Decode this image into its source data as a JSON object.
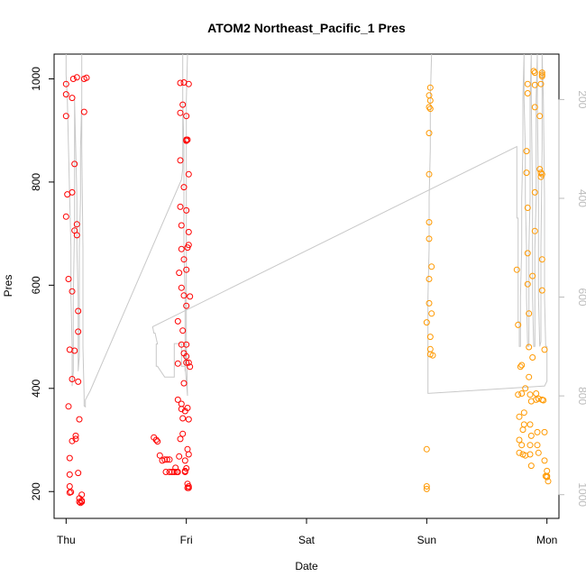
{
  "chart_data": {
    "type": "scatter",
    "title": "ATOM2 Northeast_Pacific_1 Pres",
    "xlabel": "Date",
    "ylabel": "Pres",
    "x_ticks": [
      "Thu",
      "Fri",
      "Sat",
      "Sun",
      "Mon"
    ],
    "xlim": [
      -0.1,
      4.1
    ],
    "ylim": [
      148,
      1048
    ],
    "y_ticks": [
      200,
      400,
      600,
      800,
      1000
    ],
    "y2_ticks": [
      200,
      400,
      600,
      800,
      1000
    ],
    "y2_direction": "reversed",
    "y2lim": [
      108,
      1048
    ],
    "grid": false,
    "legend": "none",
    "colors": {
      "series_a": "#ff0000",
      "series_b": "#ff9900",
      "line": "#c8c8c8",
      "right_axis": "#bbbbbb"
    },
    "series": [
      {
        "marker": "circle-open",
        "color": "#ff0000",
        "points": [
          [
            0.0,
            990
          ],
          [
            0.0,
            970
          ],
          [
            0.0,
            928
          ],
          [
            0.01,
            776
          ],
          [
            0.0,
            733
          ],
          [
            0.02,
            612
          ],
          [
            0.03,
            475
          ],
          [
            0.02,
            365
          ],
          [
            0.03,
            265
          ],
          [
            0.03,
            233
          ],
          [
            0.03,
            210
          ],
          [
            0.03,
            198
          ],
          [
            0.04,
            199
          ],
          [
            0.05,
            963
          ],
          [
            0.05,
            780
          ],
          [
            0.05,
            588
          ],
          [
            0.05,
            418
          ],
          [
            0.05,
            298
          ],
          [
            0.06,
            1000
          ],
          [
            0.07,
            835
          ],
          [
            0.07,
            706
          ],
          [
            0.07,
            473
          ],
          [
            0.08,
            308
          ],
          [
            0.08,
            302
          ],
          [
            0.09,
            1003
          ],
          [
            0.09,
            718
          ],
          [
            0.09,
            697
          ],
          [
            0.1,
            550
          ],
          [
            0.1,
            510
          ],
          [
            0.1,
            413
          ],
          [
            0.11,
            340
          ],
          [
            0.1,
            236
          ],
          [
            0.11,
            187
          ],
          [
            0.11,
            180
          ],
          [
            0.12,
            178
          ],
          [
            0.13,
            180
          ],
          [
            0.13,
            194
          ],
          [
            0.13,
            182
          ],
          [
            0.15,
            1000
          ],
          [
            0.17,
            1002
          ],
          [
            0.15,
            936
          ],
          [
            0.73,
            305
          ],
          [
            0.75,
            300
          ],
          [
            0.76,
            297
          ],
          [
            0.78,
            270
          ],
          [
            0.8,
            260
          ],
          [
            0.82,
            262
          ],
          [
            0.84,
            262
          ],
          [
            0.86,
            262
          ],
          [
            0.83,
            238
          ],
          [
            0.86,
            238
          ],
          [
            0.88,
            238
          ],
          [
            0.9,
            238
          ],
          [
            0.91,
            246
          ],
          [
            0.92,
            238
          ],
          [
            0.93,
            238
          ],
          [
            0.94,
            268
          ],
          [
            0.95,
            302
          ],
          [
            0.93,
            378
          ],
          [
            0.93,
            448
          ],
          [
            0.93,
            530
          ],
          [
            0.94,
            624
          ],
          [
            0.95,
            934
          ],
          [
            0.95,
            842
          ],
          [
            0.95,
            992
          ],
          [
            0.95,
            752
          ],
          [
            0.96,
            716
          ],
          [
            0.96,
            670
          ],
          [
            0.96,
            595
          ],
          [
            0.96,
            485
          ],
          [
            0.96,
            370
          ],
          [
            0.97,
            312
          ],
          [
            0.96,
            360
          ],
          [
            0.97,
            342
          ],
          [
            0.97,
            950
          ],
          [
            0.98,
            993
          ],
          [
            0.98,
            790
          ],
          [
            0.98,
            650
          ],
          [
            0.98,
            580
          ],
          [
            0.97,
            512
          ],
          [
            0.98,
            468
          ],
          [
            0.98,
            410
          ],
          [
            0.99,
            356
          ],
          [
            0.99,
            260
          ],
          [
            0.99,
            240
          ],
          [
            0.99,
            238
          ],
          [
            1.0,
            245
          ],
          [
            1.0,
            928
          ],
          [
            1.0,
            880
          ],
          [
            1.0,
            745
          ],
          [
            1.0,
            630
          ],
          [
            1.0,
            560
          ],
          [
            1.0,
            485
          ],
          [
            1.0,
            462
          ],
          [
            1.0,
            450
          ],
          [
            1.01,
            362
          ],
          [
            1.01,
            282
          ],
          [
            1.01,
            207
          ],
          [
            1.01,
            215
          ],
          [
            1.02,
            990
          ],
          [
            1.02,
            815
          ],
          [
            1.02,
            703
          ],
          [
            1.02,
            678
          ],
          [
            1.01,
            673
          ],
          [
            1.02,
            450
          ],
          [
            1.02,
            340
          ],
          [
            1.02,
            272
          ],
          [
            1.02,
            210
          ],
          [
            1.02,
            207
          ],
          [
            1.03,
            442
          ],
          [
            1.03,
            578
          ],
          [
            1.01,
            882
          ],
          [
            1.0,
            882
          ]
        ]
      },
      {
        "marker": "circle-open",
        "color": "#ff9900",
        "points": [
          [
            3.0,
            528
          ],
          [
            3.0,
            282
          ],
          [
            3.0,
            210
          ],
          [
            3.0,
            205
          ],
          [
            3.02,
            968
          ],
          [
            3.02,
            945
          ],
          [
            3.02,
            895
          ],
          [
            3.02,
            815
          ],
          [
            3.02,
            722
          ],
          [
            3.02,
            612
          ],
          [
            3.02,
            690
          ],
          [
            3.02,
            565
          ],
          [
            3.03,
            942
          ],
          [
            3.03,
            958
          ],
          [
            3.03,
            983
          ],
          [
            3.03,
            500
          ],
          [
            3.03,
            476
          ],
          [
            3.03,
            466
          ],
          [
            3.04,
            636
          ],
          [
            3.04,
            545
          ],
          [
            3.05,
            464
          ],
          [
            3.75,
            630
          ],
          [
            3.76,
            523
          ],
          [
            3.76,
            388
          ],
          [
            3.77,
            345
          ],
          [
            3.77,
            300
          ],
          [
            3.77,
            275
          ],
          [
            3.78,
            442
          ],
          [
            3.79,
            445
          ],
          [
            3.79,
            390
          ],
          [
            3.79,
            290
          ],
          [
            3.8,
            272
          ],
          [
            3.8,
            320
          ],
          [
            3.81,
            330
          ],
          [
            3.81,
            353
          ],
          [
            3.82,
            400
          ],
          [
            3.82,
            270
          ],
          [
            3.83,
            860
          ],
          [
            3.83,
            818
          ],
          [
            3.84,
            990
          ],
          [
            3.84,
            972
          ],
          [
            3.84,
            750
          ],
          [
            3.84,
            662
          ],
          [
            3.84,
            602
          ],
          [
            3.85,
            545
          ],
          [
            3.85,
            480
          ],
          [
            3.85,
            422
          ],
          [
            3.86,
            388
          ],
          [
            3.86,
            330
          ],
          [
            3.86,
            290
          ],
          [
            3.86,
            272
          ],
          [
            3.87,
            250
          ],
          [
            3.87,
            308
          ],
          [
            3.87,
            375
          ],
          [
            3.88,
            460
          ],
          [
            3.88,
            618
          ],
          [
            3.89,
            1015
          ],
          [
            3.9,
            1012
          ],
          [
            3.9,
            988
          ],
          [
            3.9,
            945
          ],
          [
            3.9,
            780
          ],
          [
            3.9,
            705
          ],
          [
            3.91,
            390
          ],
          [
            3.91,
            378
          ],
          [
            3.92,
            315
          ],
          [
            3.92,
            290
          ],
          [
            3.93,
            275
          ],
          [
            3.93,
            380
          ],
          [
            3.94,
            928
          ],
          [
            3.94,
            825
          ],
          [
            3.95,
            818
          ],
          [
            3.95,
            810
          ],
          [
            3.95,
            990
          ],
          [
            3.96,
            1012
          ],
          [
            3.96,
            1008
          ],
          [
            3.96,
            1005
          ],
          [
            3.96,
            815
          ],
          [
            3.96,
            650
          ],
          [
            3.96,
            590
          ],
          [
            3.96,
            378
          ],
          [
            3.97,
            377
          ],
          [
            3.98,
            475
          ],
          [
            3.98,
            315
          ],
          [
            3.98,
            260
          ],
          [
            3.99,
            230
          ],
          [
            4.0,
            240
          ],
          [
            4.0,
            230
          ],
          [
            4.0,
            228
          ],
          [
            4.01,
            220
          ]
        ]
      }
    ],
    "line_series": {
      "color": "#c8c8c8",
      "axis": "right",
      "points": [
        [
          0.0,
          108
        ],
        [
          0.0,
          150
        ],
        [
          0.01,
          200
        ],
        [
          0.02,
          300
        ],
        [
          0.03,
          400
        ],
        [
          0.04,
          500
        ],
        [
          0.04,
          600
        ],
        [
          0.05,
          700
        ],
        [
          0.05,
          780
        ],
        [
          0.06,
          750
        ],
        [
          0.06,
          600
        ],
        [
          0.07,
          450
        ],
        [
          0.07,
          300
        ],
        [
          0.07,
          200
        ],
        [
          0.08,
          300
        ],
        [
          0.09,
          400
        ],
        [
          0.09,
          500
        ],
        [
          0.1,
          600
        ],
        [
          0.1,
          700
        ],
        [
          0.1,
          750
        ],
        [
          0.11,
          720
        ],
        [
          0.11,
          600
        ],
        [
          0.11,
          500
        ],
        [
          0.12,
          400
        ],
        [
          0.12,
          300
        ],
        [
          0.13,
          200
        ],
        [
          0.13,
          108
        ],
        [
          0.13,
          300
        ],
        [
          0.14,
          500
        ],
        [
          0.14,
          700
        ],
        [
          0.15,
          800
        ],
        [
          0.15,
          820
        ],
        [
          0.16,
          822
        ],
        [
          0.16,
          808
        ],
        [
          0.2,
          790
        ],
        [
          0.96,
          362
        ],
        [
          0.97,
          340
        ],
        [
          0.97,
          108
        ],
        [
          0.97,
          150
        ],
        [
          0.97,
          200
        ],
        [
          0.98,
          300
        ],
        [
          0.98,
          400
        ],
        [
          0.98,
          500
        ],
        [
          0.99,
          600
        ],
        [
          0.99,
          700
        ],
        [
          0.99,
          750
        ],
        [
          1.0,
          700
        ],
        [
          1.0,
          600
        ],
        [
          1.0,
          500
        ],
        [
          1.0,
          400
        ],
        [
          1.0,
          300
        ],
        [
          1.0,
          200
        ],
        [
          1.01,
          108
        ],
        [
          1.0,
          200
        ],
        [
          1.0,
          400
        ],
        [
          1.0,
          600
        ],
        [
          1.0,
          700
        ],
        [
          1.01,
          800
        ],
        [
          0.99,
          740
        ],
        [
          0.96,
          740
        ],
        [
          0.96,
          694
        ],
        [
          0.9,
          694
        ],
        [
          0.9,
          762
        ],
        [
          0.88,
          762
        ],
        [
          0.83,
          762
        ],
        [
          0.82,
          762
        ],
        [
          0.76,
          740
        ],
        [
          0.75,
          740
        ],
        [
          0.75,
          695
        ],
        [
          0.76,
          695
        ],
        [
          0.74,
          673
        ],
        [
          0.73,
          673
        ],
        [
          0.72,
          660
        ],
        [
          3.75,
          295
        ],
        [
          3.75,
          440
        ],
        [
          3.76,
          440
        ],
        [
          3.76,
          650
        ],
        [
          3.77,
          650
        ],
        [
          3.77,
          700
        ],
        [
          3.78,
          700
        ],
        [
          3.78,
          600
        ],
        [
          3.79,
          500
        ],
        [
          3.79,
          400
        ],
        [
          3.8,
          300
        ],
        [
          3.8,
          200
        ],
        [
          3.81,
          108
        ],
        [
          3.81,
          200
        ],
        [
          3.82,
          300
        ],
        [
          3.82,
          400
        ],
        [
          3.83,
          500
        ],
        [
          3.83,
          600
        ],
        [
          3.84,
          700
        ],
        [
          3.85,
          700
        ],
        [
          3.85,
          500
        ],
        [
          3.86,
          400
        ],
        [
          3.86,
          300
        ],
        [
          3.86,
          200
        ],
        [
          3.87,
          108
        ],
        [
          3.87,
          200
        ],
        [
          3.88,
          400
        ],
        [
          3.88,
          600
        ],
        [
          3.89,
          700
        ],
        [
          3.9,
          700
        ],
        [
          3.9,
          500
        ],
        [
          3.91,
          400
        ],
        [
          3.91,
          300
        ],
        [
          3.91,
          200
        ],
        [
          3.92,
          108
        ],
        [
          3.92,
          200
        ],
        [
          3.93,
          400
        ],
        [
          3.93,
          600
        ],
        [
          3.94,
          700
        ],
        [
          3.95,
          690
        ],
        [
          3.95,
          500
        ],
        [
          3.96,
          300
        ],
        [
          3.96,
          200
        ],
        [
          3.96,
          108
        ],
        [
          3.97,
          200
        ],
        [
          3.98,
          400
        ],
        [
          3.98,
          600
        ],
        [
          3.99,
          700
        ],
        [
          4.0,
          700
        ],
        [
          4.0,
          770
        ],
        [
          3.98,
          780
        ],
        [
          3.97,
          780
        ],
        [
          3.01,
          795
        ],
        [
          3.01,
          708
        ],
        [
          3.01,
          600
        ],
        [
          3.02,
          500
        ],
        [
          3.02,
          400
        ],
        [
          3.03,
          300
        ],
        [
          3.03,
          200
        ],
        [
          3.04,
          108
        ],
        [
          3.04,
          108
        ]
      ]
    }
  }
}
